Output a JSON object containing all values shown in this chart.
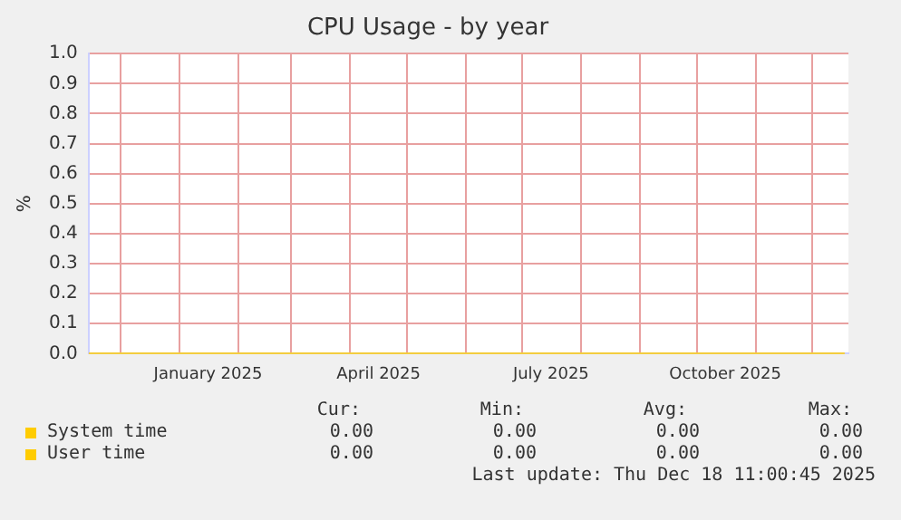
{
  "chart_data": {
    "type": "line",
    "title": "CPU Usage - by year",
    "ylabel": "%",
    "x": [
      "2024-11-14",
      "2025-12-18"
    ],
    "series": [
      {
        "name": "System time",
        "color": "#ffcc00",
        "values": [
          0,
          0
        ]
      },
      {
        "name": "User time",
        "color": "#ffcc00",
        "values": [
          0,
          0
        ]
      }
    ],
    "xlim": [
      "2024-11-14",
      "2025-12-20"
    ],
    "xticks": [
      {
        "value": "2024-12-01",
        "label": null
      },
      {
        "value": "2025-01-01",
        "label": null
      },
      {
        "value": "2025-01-16",
        "label": "January 2025"
      },
      {
        "value": "2025-02-01",
        "label": null
      },
      {
        "value": "2025-03-01",
        "label": null
      },
      {
        "value": "2025-04-01",
        "label": null
      },
      {
        "value": "2025-04-16",
        "label": "April 2025"
      },
      {
        "value": "2025-05-01",
        "label": null
      },
      {
        "value": "2025-06-01",
        "label": null
      },
      {
        "value": "2025-07-01",
        "label": null
      },
      {
        "value": "2025-07-16",
        "label": "July 2025"
      },
      {
        "value": "2025-08-01",
        "label": null
      },
      {
        "value": "2025-09-01",
        "label": null
      },
      {
        "value": "2025-10-01",
        "label": null
      },
      {
        "value": "2025-10-16",
        "label": "October 2025"
      },
      {
        "value": "2025-11-01",
        "label": null
      },
      {
        "value": "2025-12-01",
        "label": null
      }
    ],
    "ylim": [
      0,
      1
    ],
    "yticks": [
      {
        "value": 0,
        "label": "0.0"
      },
      0.1,
      0.2,
      0.3,
      0.4,
      0.5,
      0.6,
      0.7,
      0.8,
      0.9,
      {
        "value": 1,
        "label": "1.0"
      }
    ],
    "grid": true,
    "legend": "bottom left",
    "marker": "none",
    "line_style": "solid",
    "annotations": [
      "Cur:",
      "Min:",
      "Avg:",
      "Max:",
      "0.00",
      "0.00",
      "0.00",
      "0.00",
      "0.00",
      "0.00",
      "0.00",
      "0.00",
      "Last update: Thu Dec 18 11:00:45 2025"
    ]
  }
}
